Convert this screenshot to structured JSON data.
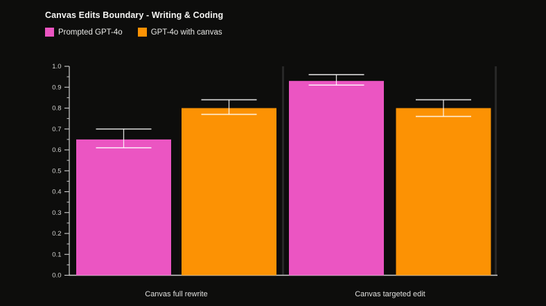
{
  "title": "Canvas Edits Boundary - Writing & Coding",
  "colors": {
    "background": "#0d0d0c",
    "pink": "#eb55c2",
    "orange": "#fc9204",
    "axis": "#cfcfcf",
    "tick_label": "#d4d4d2",
    "category_label": "#e0e0de",
    "divider": "#272727",
    "error_bar": "rgba(255,255,255,0.85)"
  },
  "legend": [
    {
      "label": "Prompted GPT-4o",
      "color": "#eb55c2"
    },
    {
      "label": "GPT-4o with canvas",
      "color": "#fc9204"
    }
  ],
  "chart_data": {
    "type": "bar",
    "title": "Canvas Edits Boundary - Writing & Coding",
    "categories": [
      "Canvas full rewrite",
      "Canvas targeted edit"
    ],
    "series": [
      {
        "name": "Prompted GPT-4o",
        "color": "#eb55c2",
        "values": [
          0.65,
          0.93
        ],
        "error_low": [
          0.61,
          0.91
        ],
        "error_high": [
          0.7,
          0.96
        ]
      },
      {
        "name": "GPT-4o with canvas",
        "color": "#fc9204",
        "values": [
          0.8,
          0.8
        ],
        "error_low": [
          0.77,
          0.76
        ],
        "error_high": [
          0.84,
          0.84
        ]
      }
    ],
    "ylabel": "",
    "xlabel": "",
    "ylim": [
      0,
      1
    ],
    "ytick_step": 0.1,
    "ytick_labels": [
      "0.0",
      "0.1",
      "0.2",
      "0.3",
      "0.4",
      "0.5",
      "0.6",
      "0.7",
      "0.8",
      "0.9",
      "1.0"
    ],
    "minor_ticks": true,
    "grid": false,
    "legend_position": "top-left"
  }
}
